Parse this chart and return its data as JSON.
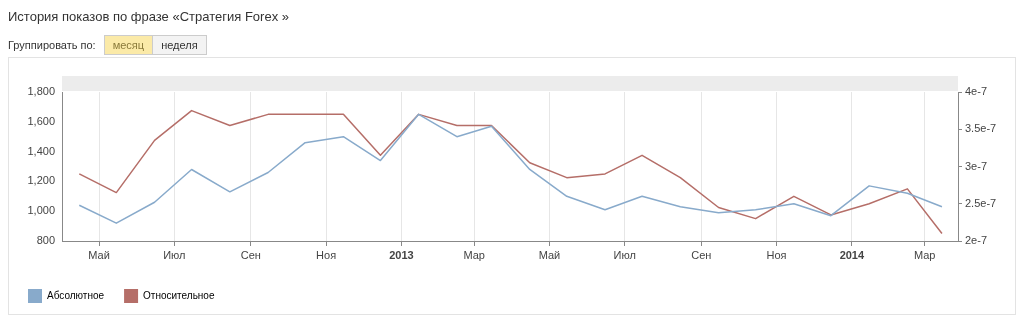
{
  "chart_data": {
    "type": "line",
    "title": "История показов по фразе «Стратегия Forex »",
    "annotations": [
      "Группировать по:",
      "месяц",
      "неделя"
    ],
    "x": [
      "2012-04-15",
      "2012-05-15",
      "2012-06-15",
      "2012-07-15",
      "2012-08-15",
      "2012-09-15",
      "2012-10-15",
      "2012-11-15",
      "2012-12-15",
      "2013-01-15",
      "2013-02-15",
      "2013-03-15",
      "2013-04-15",
      "2013-05-15",
      "2013-06-15",
      "2013-07-15",
      "2013-08-15",
      "2013-09-15",
      "2013-10-15",
      "2013-11-15",
      "2013-12-15",
      "2014-01-15",
      "2014-02-15",
      "2014-03-15"
    ],
    "series": [
      {
        "name": "Абсолютное",
        "color": "#88aacb",
        "values": [
          1040,
          920,
          1060,
          1280,
          1130,
          1260,
          1460,
          1500,
          1340,
          1650,
          1500,
          1570,
          1280,
          1100,
          1010,
          1100,
          1030,
          990,
          1010,
          1050,
          970,
          1170,
          1120,
          1030
        ]
      },
      {
        "name": "Относительное",
        "color": "#b56e68",
        "axis": "y2",
        "values": [
          2.9e-07,
          2.65e-07,
          3.35e-07,
          3.75e-07,
          3.55e-07,
          3.7e-07,
          3.7e-07,
          3.7e-07,
          3.15e-07,
          3.7e-07,
          3.55e-07,
          3.55e-07,
          3.05e-07,
          2.85e-07,
          2.9e-07,
          3.15e-07,
          2.85e-07,
          2.45e-07,
          2.3e-07,
          2.6e-07,
          2.35e-07,
          2.5e-07,
          2.7e-07,
          2.1e-07
        ]
      }
    ],
    "xlim": [
      "2012-04-01",
      "2014-03-28"
    ],
    "xticks": [
      {
        "value": "2012-05-01",
        "label": "Май"
      },
      {
        "value": "2012-07-01",
        "label": "Июл"
      },
      {
        "value": "2012-09-01",
        "label": "Сен"
      },
      {
        "value": "2012-11-01",
        "label": "Ноя"
      },
      {
        "value": "2013-01-01",
        "label": "2013"
      },
      {
        "value": "2013-03-01",
        "label": "Мар"
      },
      {
        "value": "2013-05-01",
        "label": "Май"
      },
      {
        "value": "2013-07-01",
        "label": "Июл"
      },
      {
        "value": "2013-09-01",
        "label": "Сен"
      },
      {
        "value": "2013-11-01",
        "label": "Ноя"
      },
      {
        "value": "2014-01-01",
        "label": "2014"
      },
      {
        "value": "2014-03-01",
        "label": "Мар"
      }
    ],
    "ylim": [
      800,
      1800
    ],
    "yticks": [
      {
        "value": 800,
        "label": "800"
      },
      {
        "value": 1000,
        "label": "1,000"
      },
      {
        "value": 1200,
        "label": "1,200"
      },
      {
        "value": 1400,
        "label": "1,400"
      },
      {
        "value": 1600,
        "label": "1,600"
      },
      {
        "value": 1800,
        "label": "1,800"
      }
    ],
    "y2lim": [
      2e-07,
      4e-07
    ],
    "y2ticks": [
      {
        "value": 2e-07,
        "label": "2e-7"
      },
      {
        "value": 2.5e-07,
        "label": "2.5e-7"
      },
      {
        "value": 3e-07,
        "label": "3e-7"
      },
      {
        "value": 3.5e-07,
        "label": "3.5e-7"
      },
      {
        "value": 4e-07,
        "label": "4e-7"
      }
    ],
    "grid": "x",
    "legend": "bottom left",
    "marker": "none",
    "line_style": "solid"
  }
}
